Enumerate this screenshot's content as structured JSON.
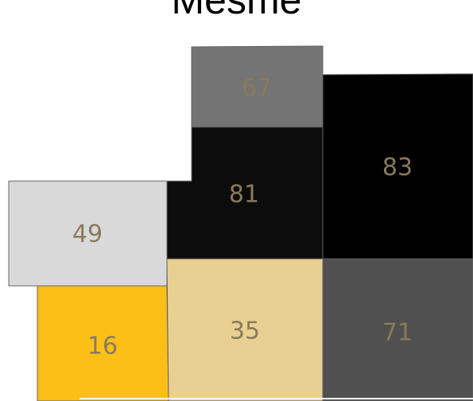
{
  "title": "Mesme",
  "colors": {
    "label": "#8a7a5a",
    "border": "#666666"
  },
  "regions": [
    {
      "id": "region-67",
      "value": "67",
      "fill": "#747474"
    },
    {
      "id": "region-83",
      "value": "83",
      "fill": "#000000"
    },
    {
      "id": "region-81",
      "value": "81",
      "fill": "#0c0c0c"
    },
    {
      "id": "region-49",
      "value": "49",
      "fill": "#d9d9d9"
    },
    {
      "id": "region-16",
      "value": "16",
      "fill": "#fbbf18"
    },
    {
      "id": "region-35",
      "value": "35",
      "fill": "#e8d092"
    },
    {
      "id": "region-71",
      "value": "71",
      "fill": "#505050"
    }
  ]
}
